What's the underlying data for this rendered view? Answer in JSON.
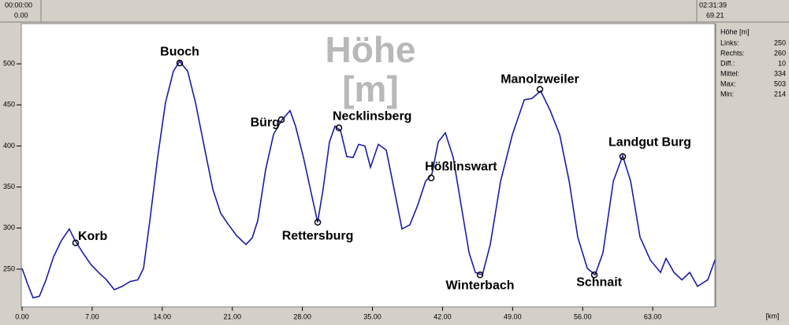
{
  "top_bar": {
    "left_time": "00:00:00",
    "left_km": "0.00",
    "right_time": "02:31:39",
    "right_km": "69.21"
  },
  "stats": {
    "title": "Höhe [m]",
    "rows": [
      [
        "Links:",
        250
      ],
      [
        "Rechts:",
        260
      ],
      [
        "Diff.:",
        10
      ],
      [
        "Mittel:",
        334
      ],
      [
        "Max:",
        503
      ],
      [
        "Min:",
        214
      ]
    ]
  },
  "chart_data": {
    "type": "line",
    "title": "Höhe [m]",
    "x_label": "[km]",
    "color": "#1c1ca8",
    "grid": false,
    "xlim": [
      0,
      69.21
    ],
    "ylim": [
      204,
      549
    ],
    "xticks": [
      {
        "value": 0,
        "label": "0.00"
      },
      {
        "value": 7,
        "label": "7.00"
      },
      {
        "value": 14,
        "label": "14.00"
      },
      {
        "value": 21,
        "label": "21.00"
      },
      {
        "value": 28,
        "label": "28.00"
      },
      {
        "value": 35,
        "label": "35.00"
      },
      {
        "value": 42,
        "label": "42.00"
      },
      {
        "value": 49,
        "label": "49.00"
      },
      {
        "value": 56,
        "label": "56.00"
      },
      {
        "value": 63,
        "label": "63.00"
      }
    ],
    "yticks": [
      250,
      300,
      350,
      400,
      450,
      500
    ],
    "x": [
      0,
      0.55,
      1.1,
      1.73,
      2.36,
      3.15,
      3.94,
      4.72,
      5.28,
      6.06,
      6.85,
      7.64,
      8.43,
      9.21,
      10.0,
      10.79,
      11.57,
      12.13,
      12.76,
      13.54,
      14.33,
      15.12,
      15.75,
      16.54,
      17.32,
      18.27,
      19.06,
      19.84,
      20.63,
      21.42,
      22.36,
      22.99,
      23.54,
      24.33,
      25.12,
      25.91,
      26.77,
      27.32,
      28.11,
      28.9,
      29.53,
      30.08,
      30.71,
      31.26,
      31.81,
      32.44,
      33.07,
      33.62,
      34.25,
      34.8,
      35.59,
      36.38,
      37.17,
      37.95,
      38.74,
      39.53,
      40.31,
      40.94,
      41.57,
      42.28,
      43.07,
      43.86,
      44.65,
      45.28,
      45.98,
      46.77,
      47.8,
      48.98,
      50.16,
      50.94,
      51.81,
      52.76,
      53.7,
      54.65,
      55.51,
      56.46,
      57.24,
      58.03,
      59.06,
      60.0,
      60.79,
      61.73,
      62.76,
      63.78,
      64.33,
      65.12,
      65.91,
      66.69,
      67.48,
      68.5,
      69.21
    ],
    "values": [
      251,
      232,
      215,
      217,
      236,
      265,
      285,
      299,
      285,
      270,
      256,
      246,
      237,
      225,
      229,
      235,
      237,
      251,
      309,
      386,
      453,
      491,
      503,
      491,
      453,
      395,
      347,
      318,
      304,
      291,
      280,
      288,
      309,
      371,
      414,
      431,
      443,
      424,
      386,
      342,
      307,
      348,
      405,
      424,
      419,
      387,
      386,
      402,
      400,
      374,
      402,
      395,
      347,
      299,
      304,
      328,
      357,
      366,
      405,
      416,
      386,
      328,
      270,
      246,
      243,
      280,
      357,
      414,
      456,
      458,
      467,
      443,
      414,
      357,
      289,
      251,
      243,
      270,
      357,
      388,
      357,
      289,
      261,
      246,
      263,
      246,
      237,
      246,
      229,
      237,
      261
    ],
    "annotations": [
      {
        "text": "Korb",
        "x": 5.35,
        "y": 282
      },
      {
        "text": "Buoch",
        "x": 15.75,
        "y": 501
      },
      {
        "text": "Bürg",
        "x": 25.9,
        "y": 432
      },
      {
        "text": "Rettersburg",
        "x": 29.53,
        "y": 307
      },
      {
        "text": "Necklinsberg",
        "x": 31.65,
        "y": 422
      },
      {
        "text": "Hößlinswart",
        "x": 40.87,
        "y": 361
      },
      {
        "text": "Winterbach",
        "x": 45.75,
        "y": 243
      },
      {
        "text": "Manolzweiler",
        "x": 51.73,
        "y": 469
      },
      {
        "text": "Schnait",
        "x": 57.17,
        "y": 243
      },
      {
        "text": "Landgut Burg",
        "x": 60.0,
        "y": 387
      }
    ]
  }
}
